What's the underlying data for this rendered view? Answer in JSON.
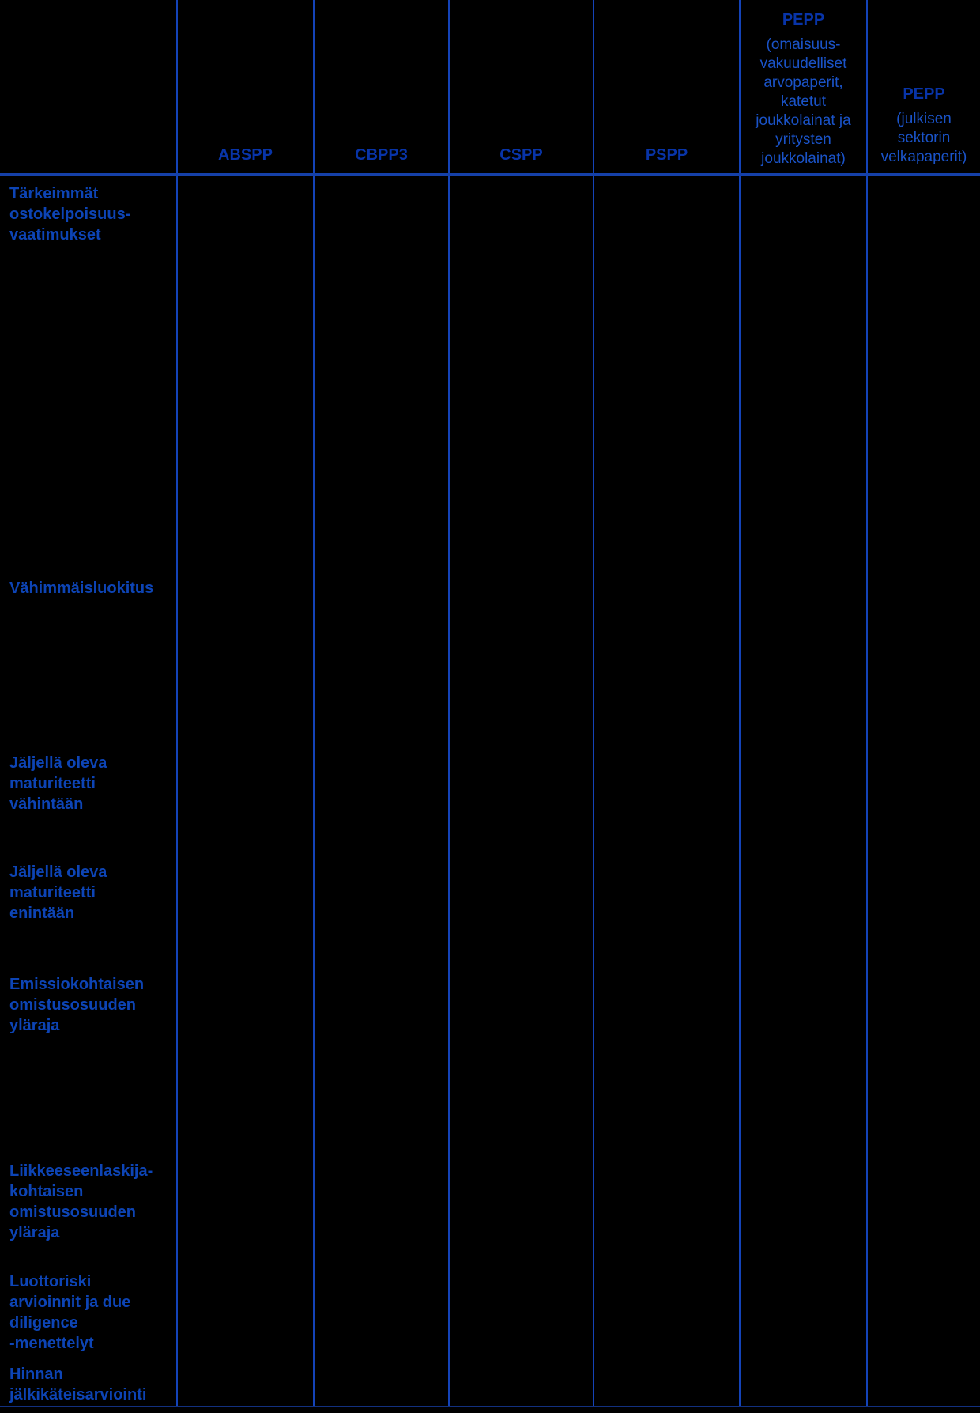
{
  "table": {
    "description_visible_content_only": "Table grid with blue lines on black background; column headers and row labels visible, body cells empty",
    "columns": [
      {
        "label": "ABSPP"
      },
      {
        "label": "CBPP3"
      },
      {
        "label": "CSPP"
      },
      {
        "label": "PSPP"
      },
      {
        "label": "PEPP",
        "subtitle": "(omaisuus-vakuudelliset arvopaperit, katetut joukkolainat ja yritysten joukkolainat)",
        "subtitle_lines": [
          "(omaisuus-",
          "vakuudelliset",
          "arvopaperit,",
          "katetut",
          "joukkolainat ja",
          "yritysten",
          "joukkolainat)"
        ]
      },
      {
        "label": "PEPP",
        "subtitle": "(julkisen sektorin velkapaperit)",
        "subtitle_lines": [
          "(julkisen",
          "sektorin",
          "velkapaperit)"
        ]
      }
    ],
    "rows": [
      {
        "label": "Tärkeimmät ostokelpoisuus-vaatimukset",
        "lines": [
          "Tärkeimmät",
          "ostokelpoisuus-",
          "vaatimukset"
        ]
      },
      {
        "label": "Vähimmäisluokitus",
        "lines": [
          "Vähimmäisluokitus"
        ]
      },
      {
        "label": "Jäljellä oleva maturiteetti vähintään",
        "lines": [
          "Jäljellä oleva",
          "maturiteetti",
          "vähintään"
        ]
      },
      {
        "label": "Jäljellä oleva maturiteetti enintään",
        "lines": [
          "Jäljellä oleva",
          "maturiteetti",
          "enintään"
        ]
      },
      {
        "label": "Emissiokohtaisen omistusosuuden yläraja",
        "lines": [
          "Emissiokohtaisen",
          "omistusosuuden",
          "yläraja"
        ]
      },
      {
        "label": "Liikkeeseenlaskija-kohtaisen omistusosuuden yläraja",
        "lines": [
          "Liikkeeseenlaskija-",
          "kohtaisen",
          "omistusosuuden",
          "yläraja"
        ]
      },
      {
        "label": "Luottoriski arvioinnit ja due diligence -menettelyt",
        "lines": [
          "Luottoriski",
          "arvioinnit ja due",
          "diligence",
          "-menettelyt"
        ]
      },
      {
        "label": "Hinnan jälkikäteisarviointi",
        "lines": [
          "Hinnan",
          "jälkikäteisarviointi"
        ]
      }
    ]
  },
  "colors": {
    "background": "#000000",
    "grid_line": "#1443B8",
    "header_rule": "#1540A8",
    "bottom_rule": "#12307F",
    "header_text": "#0834A8",
    "header_subtitle_text": "#1A53C8",
    "row_label_text": "#0D44B5"
  }
}
